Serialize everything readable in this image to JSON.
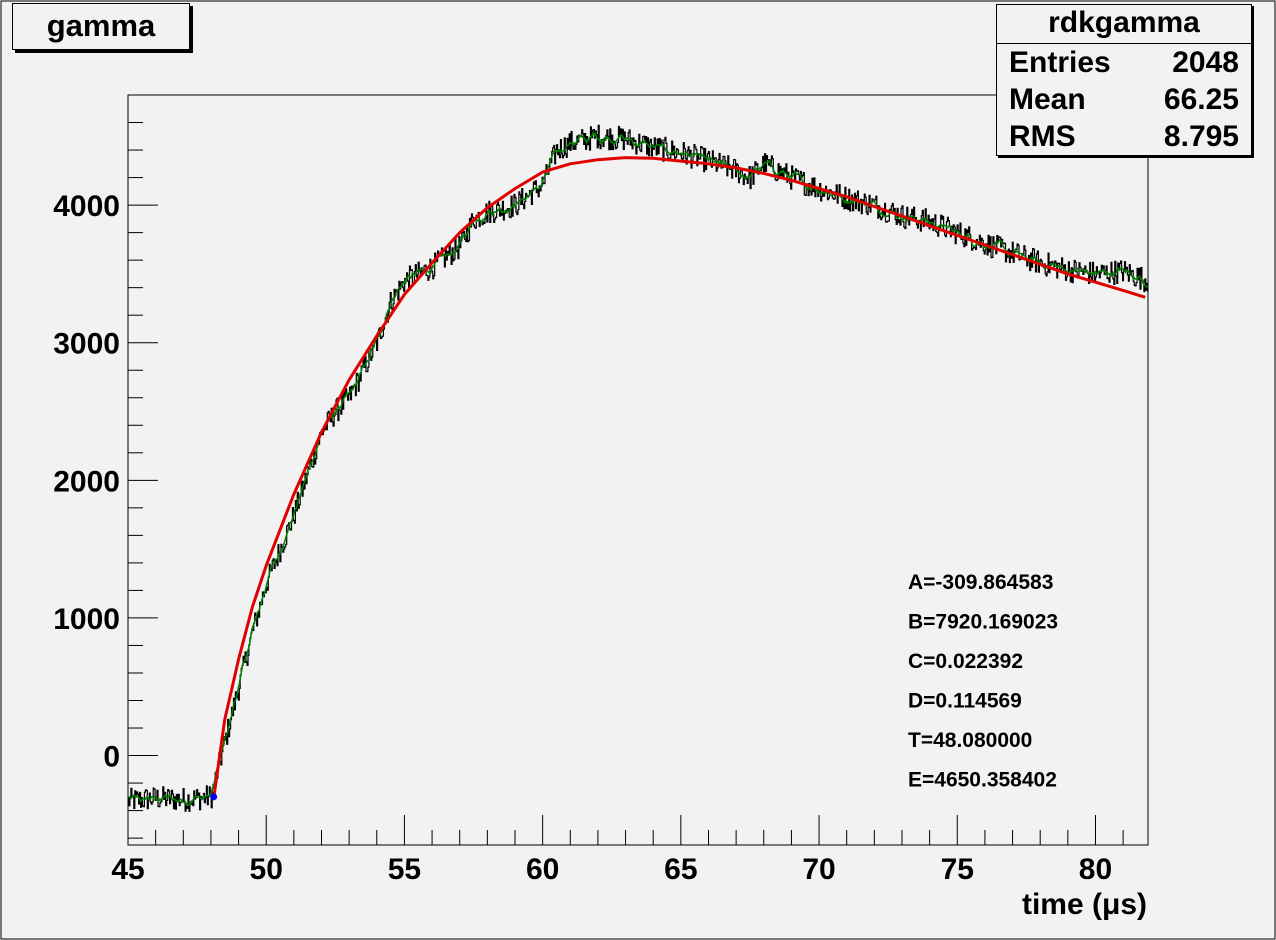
{
  "title_box": {
    "title": "gamma"
  },
  "stats_box": {
    "name": "rdkgamma",
    "rows": [
      {
        "label": "Entries",
        "value": "2048"
      },
      {
        "label": "Mean",
        "value": "66.25"
      },
      {
        "label": "RMS",
        "value": "8.795"
      }
    ]
  },
  "fit_params": [
    "A=-309.864583",
    "B=7920.169023",
    "C=0.022392",
    "D=0.114569",
    "T=48.080000",
    "E=4650.358402"
  ],
  "colors": {
    "background": "#f2f2f2",
    "data": "#000000",
    "smoothed": "#008000",
    "fit": "#e00000",
    "marker": "#0000ff"
  },
  "chart_data": {
    "type": "line",
    "title": "",
    "xlabel": "time (μs)",
    "ylabel": "",
    "xlim": [
      45,
      81.9
    ],
    "ylim": [
      -650,
      4800
    ],
    "x_ticks": [
      45,
      50,
      55,
      60,
      65,
      70,
      75,
      80
    ],
    "y_ticks": [
      0,
      1000,
      2000,
      3000,
      4000
    ],
    "grid": false,
    "series": [
      {
        "name": "",
        "role": "histogram",
        "points": [
          [
            45,
            -330
          ],
          [
            46,
            -310
          ],
          [
            47,
            -320
          ],
          [
            47.5,
            -310
          ],
          [
            48,
            -300
          ],
          [
            48.5,
            100
          ],
          [
            49,
            500
          ],
          [
            49.5,
            900
          ],
          [
            50,
            1250
          ],
          [
            50.5,
            1500
          ],
          [
            51,
            1750
          ],
          [
            51.5,
            2050
          ],
          [
            52,
            2350
          ],
          [
            52.5,
            2500
          ],
          [
            53,
            2600
          ],
          [
            54,
            3000
          ],
          [
            54.5,
            3300
          ],
          [
            55,
            3450
          ],
          [
            55.5,
            3500
          ],
          [
            56,
            3550
          ],
          [
            57,
            3700
          ],
          [
            57.5,
            3900
          ],
          [
            58,
            3950
          ],
          [
            59,
            4000
          ],
          [
            60,
            4150
          ],
          [
            60.5,
            4400
          ],
          [
            61,
            4450
          ],
          [
            62,
            4500
          ],
          [
            63,
            4480
          ],
          [
            64,
            4420
          ],
          [
            65,
            4380
          ],
          [
            66,
            4320
          ],
          [
            67,
            4250
          ],
          [
            67.5,
            4200
          ],
          [
            68,
            4300
          ],
          [
            69,
            4200
          ],
          [
            70,
            4120
          ],
          [
            71,
            4050
          ],
          [
            72,
            4000
          ],
          [
            73,
            3920
          ],
          [
            74,
            3880
          ],
          [
            75,
            3800
          ],
          [
            76,
            3720
          ],
          [
            77,
            3650
          ],
          [
            78,
            3580
          ],
          [
            79,
            3530
          ],
          [
            80,
            3500
          ],
          [
            81,
            3520
          ],
          [
            81.9,
            3450
          ]
        ]
      },
      {
        "name": "",
        "role": "fit",
        "points": [
          [
            48.1,
            -310
          ],
          [
            48.5,
            260
          ],
          [
            49,
            700
          ],
          [
            49.5,
            1080
          ],
          [
            50,
            1380
          ],
          [
            51,
            1900
          ],
          [
            52,
            2350
          ],
          [
            53,
            2730
          ],
          [
            54,
            3050
          ],
          [
            55,
            3350
          ],
          [
            56,
            3580
          ],
          [
            57,
            3800
          ],
          [
            58,
            3980
          ],
          [
            59,
            4120
          ],
          [
            60,
            4240
          ],
          [
            61,
            4300
          ],
          [
            62,
            4330
          ],
          [
            63,
            4345
          ],
          [
            64,
            4340
          ],
          [
            65,
            4320
          ],
          [
            66,
            4300
          ],
          [
            67,
            4270
          ],
          [
            68,
            4230
          ],
          [
            69,
            4180
          ],
          [
            70,
            4120
          ],
          [
            71,
            4060
          ],
          [
            72,
            3990
          ],
          [
            73,
            3920
          ],
          [
            74,
            3850
          ],
          [
            75,
            3780
          ],
          [
            76,
            3710
          ],
          [
            77,
            3640
          ],
          [
            78,
            3570
          ],
          [
            79,
            3500
          ],
          [
            80,
            3440
          ],
          [
            81,
            3380
          ],
          [
            81.8,
            3330
          ]
        ]
      },
      {
        "name": "",
        "role": "marker",
        "points": [
          [
            48.1,
            -300
          ]
        ]
      }
    ]
  }
}
